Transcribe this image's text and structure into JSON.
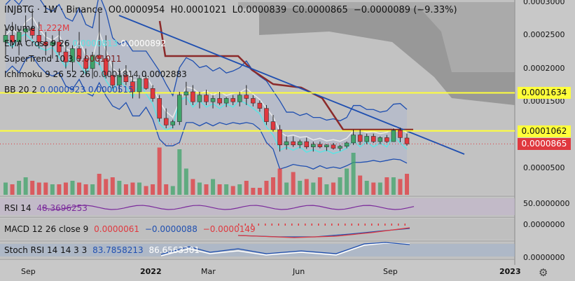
{
  "header": {
    "symbol": "INJBTC · 1W · Binance",
    "open": "O0.0000954",
    "high": "H0.0001021",
    "low": "L0.0000839",
    "close": "C0.0000865",
    "change": "−0.0000089 (−9.33%)"
  },
  "legends": [
    {
      "name": "Volume",
      "values": [
        {
          "text": "1.222M",
          "color": "#e0383e"
        }
      ]
    },
    {
      "name": "EMA Cross 9 26",
      "values": [
        {
          "text": "0.0000813",
          "color": "#5ee3e3"
        },
        {
          "text": "0.0000892",
          "color": "#ffffff"
        }
      ]
    },
    {
      "name": "SuperTrend 10 3",
      "values": [
        {
          "text": "0.0001011",
          "color": "#7a1b1b"
        }
      ]
    },
    {
      "name": "Ichimoku 9 26 52 26",
      "values": [
        {
          "text": "0.0001814",
          "color": "#333333"
        },
        {
          "text": "0.0002883",
          "color": "#111111"
        }
      ]
    },
    {
      "name": "BB 20 2",
      "values": [
        {
          "text": "0.0000923",
          "color": "#1f4fb0"
        },
        {
          "text": "0.0000515",
          "color": "#1f4fb0"
        }
      ]
    }
  ],
  "price_axis": {
    "ticks": [
      "0.0003000",
      "0.0002500",
      "0.0002000",
      "0.0001500",
      "0.0000500"
    ],
    "tags": [
      {
        "text": "0.0001634",
        "bg": "#ffff3a"
      },
      {
        "text": "0.0001062",
        "bg": "#ffff3a"
      },
      {
        "text": "0.0000865",
        "bg": "#e0383e",
        "fg": "#ffffff"
      }
    ]
  },
  "time_axis": {
    "ticks": [
      "Sep",
      "2022",
      "Mar",
      "Jun",
      "Sep",
      "2023"
    ]
  },
  "panes": {
    "rsi": {
      "label": "RSI 14",
      "value": "48.3696253",
      "value_color": "#7b2a9b",
      "axis": "50.0000000"
    },
    "macd": {
      "label": "MACD 12 26 close 9",
      "values": [
        {
          "text": "0.0000061",
          "color": "#e0383e"
        },
        {
          "text": "−0.0000088",
          "color": "#1f4fb0"
        },
        {
          "text": "−0.0000149",
          "color": "#e0383e"
        }
      ],
      "axis": "0.0000000"
    },
    "stoch": {
      "label": "Stoch RSI 14 14 3 3",
      "values": [
        {
          "text": "83.7858213",
          "color": "#1f4fb0"
        },
        {
          "text": "86.6563301",
          "color": "#ffffff"
        }
      ],
      "axis": "0.0000000"
    }
  },
  "colors": {
    "up": "#3fa36a",
    "down": "#e0383e",
    "trend": "#1f4fb0",
    "level": "#ffff3a",
    "supertrend": "#8b2a2a"
  },
  "chart_data": {
    "type": "candlestick",
    "y_unit": "BTC",
    "ylim": [
      2e-05,
      0.0003
    ],
    "horizontal_levels": [
      0.0001634,
      0.0001062
    ],
    "last_price": 8.65e-05,
    "candles": [
      [
        0.00024,
        0.00026,
        0.00022,
        0.00025
      ],
      [
        0.00025,
        0.00027,
        0.00023,
        0.00024
      ],
      [
        0.00024,
        0.00026,
        0.00022,
        0.000255
      ],
      [
        0.000255,
        0.00028,
        0.00024,
        0.00026
      ],
      [
        0.00026,
        0.00029,
        0.000245,
        0.00025
      ],
      [
        0.00025,
        0.00027,
        0.00023,
        0.00024
      ],
      [
        0.00024,
        0.000255,
        0.00022,
        0.000235
      ],
      [
        0.000235,
        0.00025,
        0.000215,
        0.00024
      ],
      [
        0.00024,
        0.00026,
        0.00022,
        0.000225
      ],
      [
        0.000225,
        0.00024,
        0.0002,
        0.00021
      ],
      [
        0.00021,
        0.000235,
        0.000195,
        0.00023
      ],
      [
        0.00023,
        0.000255,
        0.00021,
        0.000215
      ],
      [
        0.000215,
        0.00023,
        0.00019,
        0.0002
      ],
      [
        0.0002,
        0.000225,
        0.000185,
        0.00022
      ],
      [
        0.00022,
        0.000285,
        0.000205,
        0.000215
      ],
      [
        0.000215,
        0.00025,
        0.000185,
        0.00019
      ],
      [
        0.00019,
        0.00021,
        0.00017,
        0.000175
      ],
      [
        0.000175,
        0.0002,
        0.000165,
        0.00019
      ],
      [
        0.00019,
        0.000205,
        0.000175,
        0.00018
      ],
      [
        0.00018,
        0.00019,
        0.000155,
        0.000165
      ],
      [
        0.000165,
        0.00019,
        0.000155,
        0.000185
      ],
      [
        0.000185,
        0.00019,
        0.000168,
        0.00017
      ],
      [
        0.00017,
        0.000175,
        0.00015,
        0.000155
      ],
      [
        0.000155,
        0.00016,
        0.00012,
        0.000125
      ],
      [
        0.000125,
        0.00014,
        0.00011,
        0.000115
      ],
      [
        0.000115,
        0.000123,
        0.00011,
        0.00012
      ],
      [
        0.00012,
        0.000165,
        0.000115,
        0.00016
      ],
      [
        0.00016,
        0.00018,
        0.000145,
        0.000165
      ],
      [
        0.000165,
        0.000175,
        0.000145,
        0.00015
      ],
      [
        0.00015,
        0.000165,
        0.00014,
        0.00016
      ],
      [
        0.00016,
        0.000168,
        0.000145,
        0.00015
      ],
      [
        0.00015,
        0.00016,
        0.00014,
        0.000155
      ],
      [
        0.000155,
        0.000165,
        0.000145,
        0.000148
      ],
      [
        0.000148,
        0.000157,
        0.000142,
        0.000155
      ],
      [
        0.000155,
        0.00016,
        0.000145,
        0.00015
      ],
      [
        0.00015,
        0.000165,
        0.000143,
        0.00016
      ],
      [
        0.00016,
        0.000175,
        0.000145,
        0.000155
      ],
      [
        0.000155,
        0.00016,
        0.000143,
        0.000148
      ],
      [
        0.000148,
        0.000152,
        0.000135,
        0.00014
      ],
      [
        0.00014,
        0.000145,
        0.000115,
        0.00012
      ],
      [
        0.00012,
        0.00013,
        0.000105,
        0.000108
      ],
      [
        0.000108,
        0.000115,
        7.5e-05,
        8.5e-05
      ],
      [
        8.5e-05,
        9.8e-05,
        7.8e-05,
        9e-05
      ],
      [
        9e-05,
        9.8e-05,
        8.2e-05,
        8.5e-05
      ],
      [
        8.5e-05,
        9.3e-05,
        8e-05,
        9e-05
      ],
      [
        9e-05,
        9.6e-05,
        7.9e-05,
        8.2e-05
      ],
      [
        8.2e-05,
        9e-05,
        7.5e-05,
        8.6e-05
      ],
      [
        8.6e-05,
        9e-05,
        8e-05,
        8.2e-05
      ],
      [
        8.2e-05,
        8.6e-05,
        7.6e-05,
        8.5e-05
      ],
      [
        8.5e-05,
        8.8e-05,
        7.8e-05,
        8e-05
      ],
      [
        8e-05,
        8.5e-05,
        7.6e-05,
        8.3e-05
      ],
      [
        8.3e-05,
        9e-05,
        8e-05,
        8.8e-05
      ],
      [
        8.8e-05,
        0.000108,
        8.5e-05,
        0.0001
      ],
      [
        0.0001,
        0.000108,
        8.5e-05,
        9e-05
      ],
      [
        9e-05,
        0.000102,
        8.6e-05,
        9.8e-05
      ],
      [
        9.8e-05,
        0.000102,
        8.8e-05,
        9e-05
      ],
      [
        9e-05,
        9.8e-05,
        8.6e-05,
        9.6e-05
      ],
      [
        9.6e-05,
        0.0001,
        8.8e-05,
        9e-05
      ],
      [
        9e-05,
        0.00011,
        9e-05,
        0.000107
      ],
      [
        0.000107,
        0.000111,
        8.9e-05,
        9.6e-05
      ],
      [
        9.54e-05,
        0.0001021,
        8.39e-05,
        8.65e-05
      ]
    ],
    "volume": [
      0.7,
      0.6,
      0.8,
      1.0,
      0.8,
      0.7,
      0.7,
      0.6,
      0.6,
      0.7,
      0.8,
      0.7,
      0.6,
      0.6,
      1.2,
      0.9,
      1.0,
      0.8,
      0.6,
      0.7,
      0.7,
      0.5,
      0.6,
      2.7,
      0.6,
      0.5,
      2.6,
      1.5,
      0.9,
      0.7,
      0.6,
      0.9,
      0.6,
      0.6,
      0.5,
      0.6,
      0.8,
      0.4,
      0.4,
      0.8,
      1.0,
      1.5,
      0.7,
      1.3,
      0.8,
      0.9,
      0.7,
      1.0,
      0.6,
      0.7,
      1.0,
      1.5,
      2.4,
      1.1,
      0.8,
      0.7,
      0.7,
      1.0,
      1.0,
      0.9,
      1.2
    ],
    "rsi_value": 48.3696253,
    "macd": {
      "macd": 6.1e-06,
      "signal": -8.8e-06,
      "hist": -1.49e-05
    },
    "stoch_rsi": {
      "k": 83.7858213,
      "d": 86.6563301
    }
  }
}
